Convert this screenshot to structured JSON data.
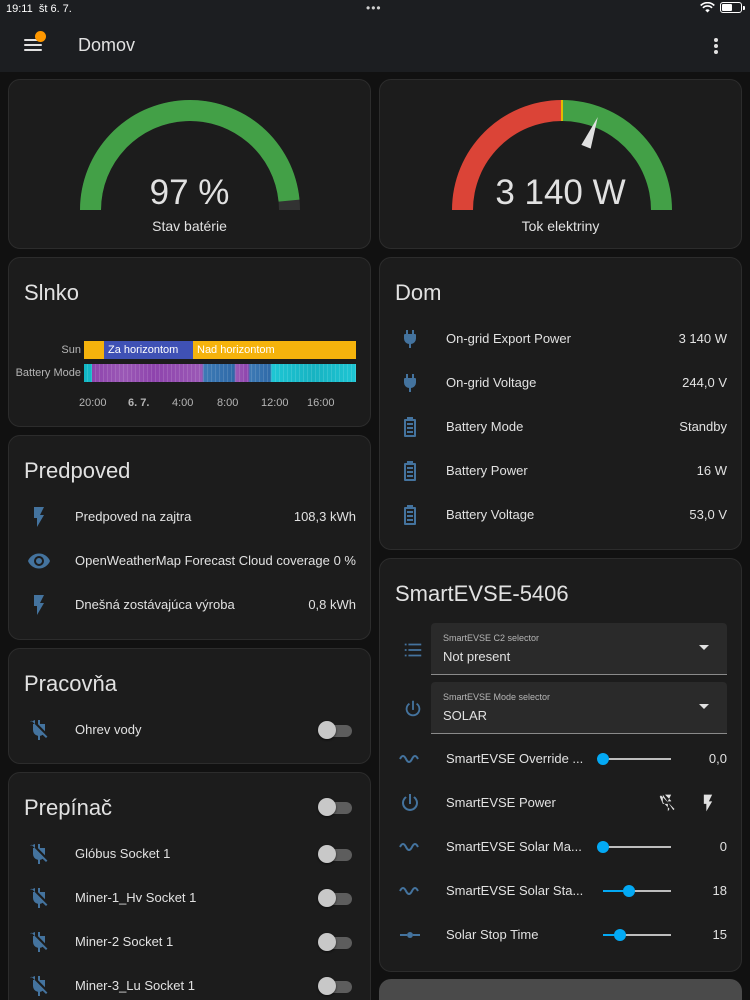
{
  "status_bar": {
    "time": "19:11",
    "date": "št 6. 7."
  },
  "app_bar": {
    "title": "Domov"
  },
  "colors": {
    "accent": "#03a9f4",
    "icon": "#44739e",
    "green": "#43a047",
    "red": "#db4437",
    "bg": "#111111",
    "card": "#1c1c1c"
  },
  "battery_gauge": {
    "value": "97 %",
    "label": "Stav batérie",
    "level_percent": 97
  },
  "power_gauge": {
    "value": "3 140 W",
    "label": "Tok elektriny",
    "needle_fraction": 0.62
  },
  "sun_card": {
    "title": "Slnko",
    "rows": [
      {
        "label": "Sun",
        "segments": [
          {
            "text": ""
          },
          {
            "text": "Za horizontom"
          },
          {
            "text": "Nad horizontom"
          }
        ]
      },
      {
        "label": "Battery Mode"
      }
    ],
    "ticks": [
      "20:00",
      "6. 7.",
      "4:00",
      "8:00",
      "12:00",
      "16:00"
    ]
  },
  "forecast_card": {
    "title": "Predpoved",
    "rows": [
      {
        "icon": "flash-icon",
        "name": "Predpoved na zajtra",
        "value": "108,3 kWh"
      },
      {
        "icon": "eye-icon",
        "name": "OpenWeatherMap Forecast Cloud coverage",
        "value": "0 %"
      },
      {
        "icon": "flash-icon",
        "name": "Dnešná zostávajúca výroba",
        "value": "0,8 kWh"
      }
    ]
  },
  "workroom_card": {
    "title": "Pracovňa",
    "rows": [
      {
        "icon": "power-plug-off-icon",
        "name": "Ohrev vody",
        "on": false
      }
    ]
  },
  "switches_card": {
    "title": "Prepínač",
    "rows": [
      {
        "icon": "power-plug-off-icon",
        "name": "Glóbus Socket 1"
      },
      {
        "icon": "power-plug-off-icon",
        "name": "Miner-1_Hv Socket 1"
      },
      {
        "icon": "power-plug-off-icon",
        "name": "Miner-2 Socket 1"
      },
      {
        "icon": "power-plug-off-icon",
        "name": "Miner-3_Lu Socket 1"
      }
    ]
  },
  "home_card": {
    "title": "Dom",
    "rows": [
      {
        "icon": "power-plug-icon",
        "name": "On-grid Export Power",
        "value": "3 140 W"
      },
      {
        "icon": "power-plug-icon",
        "name": "On-grid Voltage",
        "value": "244,0 V"
      },
      {
        "icon": "battery-icon",
        "name": "Battery Mode",
        "value": "Standby"
      },
      {
        "icon": "battery-icon",
        "name": "Battery Power",
        "value": "16 W"
      },
      {
        "icon": "battery-icon",
        "name": "Battery Voltage",
        "value": "53,0 V"
      }
    ]
  },
  "evse_card": {
    "title": "SmartEVSE-5406",
    "selects": [
      {
        "icon": "format-list-icon",
        "label": "SmartEVSE C2 selector",
        "value": "Not present"
      },
      {
        "icon": "power-icon",
        "label": "SmartEVSE Mode selector",
        "value": "SOLAR"
      }
    ],
    "rows": [
      {
        "icon": "sine-wave-icon",
        "name": "SmartEVSE Override ...",
        "value": "0,0",
        "slider": 0
      },
      {
        "icon": "power-icon",
        "name": "SmartEVSE Power"
      },
      {
        "icon": "sine-wave-icon",
        "name": "SmartEVSE Solar Ma...",
        "value": "0",
        "slider": 0
      },
      {
        "icon": "sine-wave-icon",
        "name": "SmartEVSE Solar Sta...",
        "value": "18",
        "slider": 0.38
      },
      {
        "icon": "ray-vertex-icon",
        "name": "Solar Stop Time",
        "value": "15",
        "slider": 0.25
      }
    ]
  }
}
